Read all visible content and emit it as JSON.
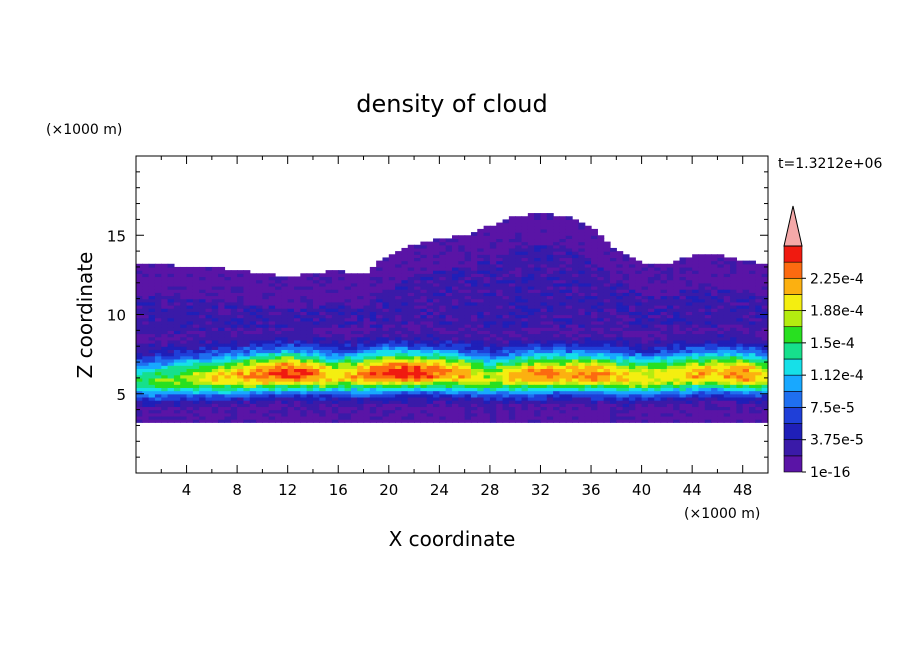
{
  "chart_data": {
    "type": "heatmap",
    "title": "density of cloud",
    "xlabel": "X coordinate",
    "ylabel": "Z coordinate",
    "x_unit": "(×1000 m)",
    "y_unit": "(×1000 m)",
    "time_label": "t=1.3212e+06",
    "xlim": [
      0,
      50
    ],
    "ylim": [
      0,
      20
    ],
    "x_ticks": [
      4,
      8,
      12,
      16,
      20,
      24,
      28,
      32,
      36,
      40,
      44,
      48
    ],
    "y_ticks": [
      5,
      10,
      15
    ],
    "colorbar": {
      "levels": [
        1e-16,
        1.875e-05,
        3.75e-05,
        5.625e-05,
        7.5e-05,
        9.375e-05,
        0.0001125,
        0.00013125,
        0.00015,
        0.00016875,
        0.0001875,
        0.00020625,
        0.000225,
        0.00024375
      ],
      "tick_labels": [
        "1e-16",
        "3.75e-5",
        "7.5e-5",
        "1.12e-4",
        "1.5e-4",
        "1.88e-4",
        "2.25e-4"
      ],
      "colors": [
        "#5a14a6",
        "#3a1aa8",
        "#1f1fb8",
        "#1f3fd8",
        "#1f6ff0",
        "#18a8ff",
        "#16e0e8",
        "#16e08c",
        "#28e020",
        "#b4ec10",
        "#f4ee10",
        "#fcb010",
        "#fc6a10",
        "#f01a10"
      ],
      "overflow_color": "#f4a8a8"
    },
    "field": {
      "x": [
        0,
        2,
        4,
        6,
        8,
        10,
        12,
        14,
        16,
        18,
        20,
        22,
        24,
        26,
        28,
        30,
        32,
        34,
        36,
        38,
        40,
        42,
        44,
        46,
        48,
        50
      ],
      "core_peak_level": [
        7,
        8,
        9,
        10,
        11,
        12,
        13,
        12,
        10,
        12,
        13,
        13,
        12,
        11,
        9,
        11,
        12,
        11,
        12,
        11,
        10,
        10,
        11,
        11,
        12,
        10
      ],
      "core_height": [
        5.8,
        5.8,
        5.9,
        6.0,
        6.1,
        6.2,
        6.3,
        6.2,
        6.1,
        6.2,
        6.3,
        6.3,
        6.3,
        6.2,
        6.0,
        6.1,
        6.2,
        6.2,
        6.2,
        6.1,
        6.0,
        6.1,
        6.2,
        6.3,
        6.2,
        6.1
      ],
      "cloud_base": 3.3,
      "cloud_top": [
        13.3,
        13.2,
        13.0,
        13.0,
        12.8,
        12.6,
        12.4,
        12.6,
        12.8,
        12.5,
        13.8,
        14.4,
        14.8,
        15.0,
        15.6,
        16.2,
        16.4,
        16.2,
        15.6,
        14.0,
        13.3,
        13.2,
        13.7,
        13.8,
        13.4,
        13.2
      ]
    }
  }
}
